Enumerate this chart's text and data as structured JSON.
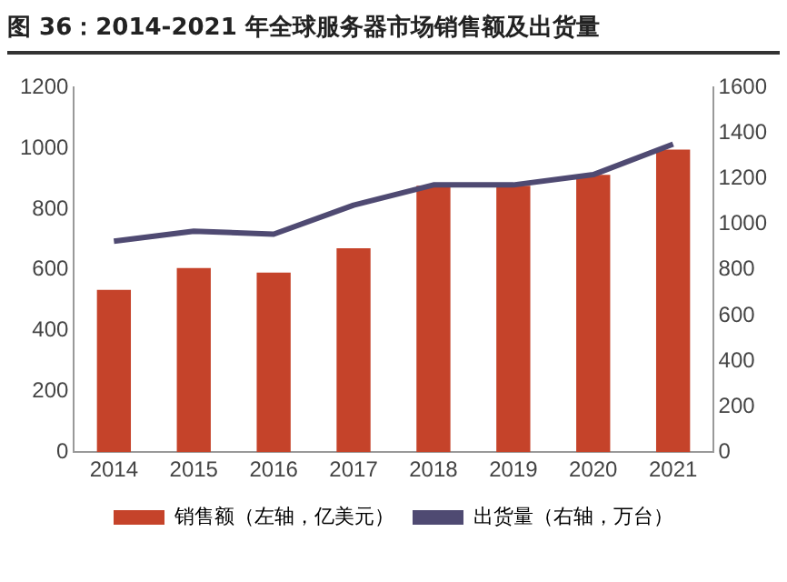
{
  "chart_data": {
    "type": "bar",
    "title": "图 36：2014-2021 年全球服务器市场销售额及出货量",
    "categories": [
      "2014",
      "2015",
      "2016",
      "2017",
      "2018",
      "2019",
      "2020",
      "2021"
    ],
    "series": [
      {
        "name": "销售额（左轴，亿美元）",
        "color": "#c5432a",
        "values": [
          534,
          606,
          591,
          671,
          877,
          877,
          913,
          996
        ]
      },
      {
        "name": "出货量（右轴，万台）",
        "type": "line",
        "axis": "y2",
        "color": "#4f4a72",
        "values": [
          926,
          970,
          957,
          1084,
          1173,
          1173,
          1218,
          1352
        ]
      }
    ],
    "ylim": [
      0,
      1200
    ],
    "yticks": [
      0,
      200,
      400,
      600,
      800,
      1000,
      1200
    ],
    "y2lim": [
      0,
      1600
    ],
    "y2ticks": [
      0,
      200,
      400,
      600,
      800,
      1000,
      1200,
      1400,
      1600
    ],
    "grid": false,
    "legend": "bottom",
    "marker": "none",
    "line_style": "solid"
  }
}
